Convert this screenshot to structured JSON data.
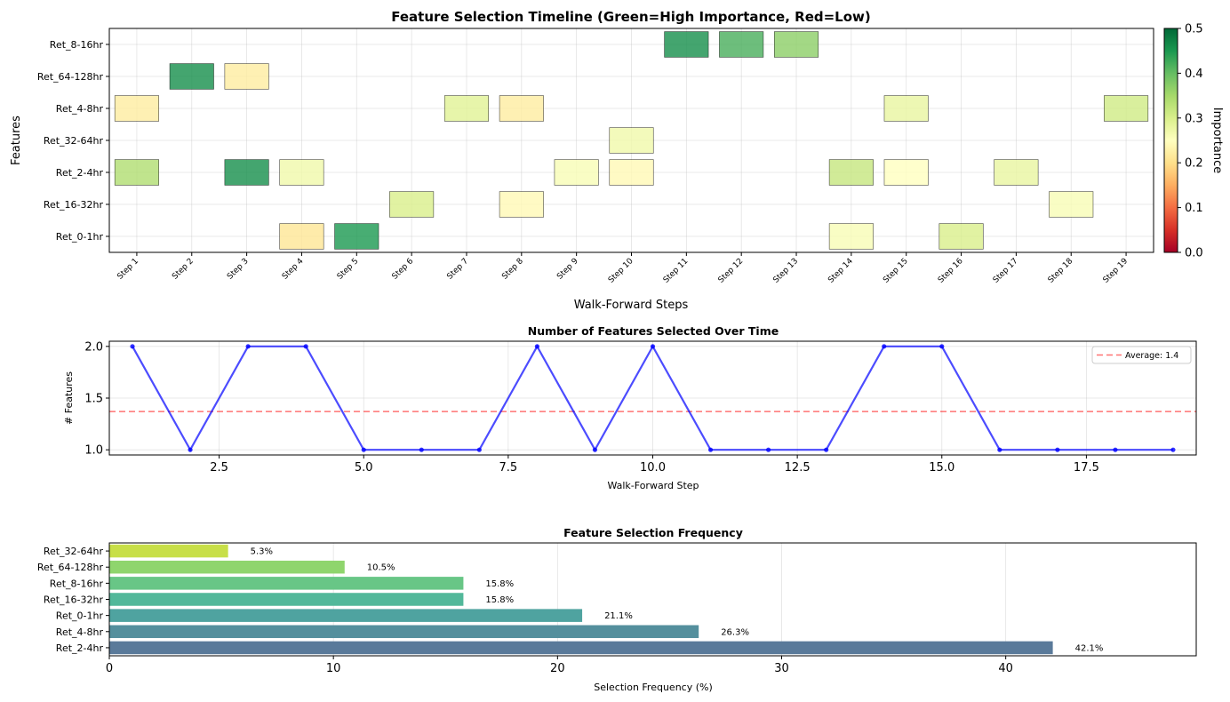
{
  "chart_data": [
    {
      "type": "heatmap",
      "title": "Feature Selection Timeline (Green=High Importance, Red=Low)",
      "xlabel": "Walk-Forward Steps",
      "ylabel": "Features",
      "x_categories": [
        "Step 1",
        "Step 2",
        "Step 3",
        "Step 4",
        "Step 5",
        "Step 6",
        "Step 7",
        "Step 8",
        "Step 9",
        "Step 10",
        "Step 11",
        "Step 12",
        "Step 13",
        "Step 14",
        "Step 15",
        "Step 16",
        "Step 17",
        "Step 18",
        "Step 19"
      ],
      "y_categories": [
        "Ret_0-1hr",
        "Ret_16-32hr",
        "Ret_2-4hr",
        "Ret_32-64hr",
        "Ret_4-8hr",
        "Ret_64-128hr",
        "Ret_8-16hr"
      ],
      "cells": [
        {
          "feature": "Ret_8-16hr",
          "step": 11,
          "importance": 0.46
        },
        {
          "feature": "Ret_8-16hr",
          "step": 12,
          "importance": 0.42
        },
        {
          "feature": "Ret_8-16hr",
          "step": 13,
          "importance": 0.37
        },
        {
          "feature": "Ret_64-128hr",
          "step": 2,
          "importance": 0.46
        },
        {
          "feature": "Ret_64-128hr",
          "step": 3,
          "importance": 0.22
        },
        {
          "feature": "Ret_4-8hr",
          "step": 1,
          "importance": 0.22
        },
        {
          "feature": "Ret_4-8hr",
          "step": 7,
          "importance": 0.29
        },
        {
          "feature": "Ret_4-8hr",
          "step": 8,
          "importance": 0.22
        },
        {
          "feature": "Ret_4-8hr",
          "step": 15,
          "importance": 0.28
        },
        {
          "feature": "Ret_4-8hr",
          "step": 19,
          "importance": 0.31
        },
        {
          "feature": "Ret_32-64hr",
          "step": 10,
          "importance": 0.27
        },
        {
          "feature": "Ret_2-4hr",
          "step": 1,
          "importance": 0.34
        },
        {
          "feature": "Ret_2-4hr",
          "step": 3,
          "importance": 0.46
        },
        {
          "feature": "Ret_2-4hr",
          "step": 4,
          "importance": 0.27
        },
        {
          "feature": "Ret_2-4hr",
          "step": 9,
          "importance": 0.26
        },
        {
          "feature": "Ret_2-4hr",
          "step": 10,
          "importance": 0.24
        },
        {
          "feature": "Ret_2-4hr",
          "step": 14,
          "importance": 0.32
        },
        {
          "feature": "Ret_2-4hr",
          "step": 15,
          "importance": 0.25
        },
        {
          "feature": "Ret_2-4hr",
          "step": 17,
          "importance": 0.28
        },
        {
          "feature": "Ret_16-32hr",
          "step": 6,
          "importance": 0.3
        },
        {
          "feature": "Ret_16-32hr",
          "step": 8,
          "importance": 0.24
        },
        {
          "feature": "Ret_16-32hr",
          "step": 18,
          "importance": 0.26
        },
        {
          "feature": "Ret_0-1hr",
          "step": 4,
          "importance": 0.21
        },
        {
          "feature": "Ret_0-1hr",
          "step": 5,
          "importance": 0.45
        },
        {
          "feature": "Ret_0-1hr",
          "step": 14,
          "importance": 0.26
        },
        {
          "feature": "Ret_0-1hr",
          "step": 16,
          "importance": 0.3
        }
      ],
      "colorbar": {
        "label": "Importance",
        "range": [
          0,
          0.5
        ],
        "ticks": [
          "0.0",
          "0.1",
          "0.2",
          "0.3",
          "0.4",
          "0.5"
        ],
        "colormap": "RdYlGn"
      }
    },
    {
      "type": "line",
      "title": "Number of Features Selected Over Time",
      "xlabel": "Walk-Forward Step",
      "ylabel": "# Features",
      "xlim": [
        0.6,
        19.4
      ],
      "ylim": [
        0.95,
        2.05
      ],
      "x_ticks": [
        "2.5",
        "5.0",
        "7.5",
        "10.0",
        "12.5",
        "15.0",
        "17.5"
      ],
      "y_ticks": [
        "1.0",
        "1.5",
        "2.0"
      ],
      "x": [
        1,
        2,
        3,
        4,
        5,
        6,
        7,
        8,
        9,
        10,
        11,
        12,
        13,
        14,
        15,
        16,
        17,
        18,
        19
      ],
      "series": [
        {
          "values": [
            2,
            1,
            2,
            2,
            1,
            1,
            1,
            2,
            1,
            2,
            1,
            1,
            1,
            2,
            2,
            1,
            1,
            1,
            1
          ],
          "color": "#0000ff"
        }
      ],
      "reference_line": {
        "value": 1.37,
        "label": "Average: 1.4",
        "color": "#ff0000"
      },
      "legend_position": "top-right",
      "grid": true
    },
    {
      "type": "bar",
      "orientation": "horizontal",
      "title": "Feature Selection Frequency",
      "xlabel": "Selection Frequency (%)",
      "xlim": [
        0,
        48.5
      ],
      "x_ticks": [
        "0",
        "10",
        "20",
        "30",
        "40"
      ],
      "categories": [
        "Ret_2-4hr",
        "Ret_4-8hr",
        "Ret_0-1hr",
        "Ret_16-32hr",
        "Ret_8-16hr",
        "Ret_64-128hr",
        "Ret_32-64hr"
      ],
      "values": [
        42.1,
        26.3,
        21.1,
        15.8,
        15.8,
        10.5,
        5.3
      ],
      "value_labels": [
        "42.1%",
        "26.3%",
        "21.1%",
        "15.8%",
        "15.8%",
        "10.5%",
        "5.3%"
      ],
      "colors": [
        "#5a7a9a",
        "#548f9d",
        "#4fa3a0",
        "#52b89a",
        "#68c686",
        "#8fd56d",
        "#c8df48"
      ],
      "grid": true
    }
  ]
}
